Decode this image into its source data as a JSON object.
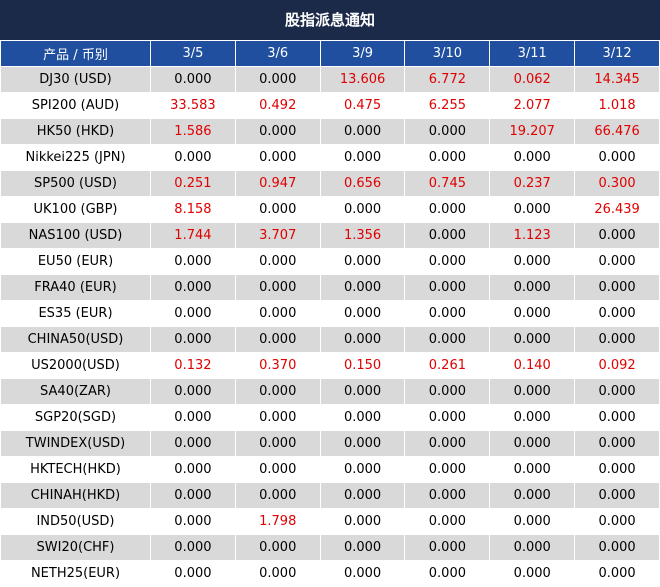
{
  "title": "股指派息通知",
  "table": {
    "header": [
      "产品 / 币别",
      "3/5",
      "3/6",
      "3/9",
      "3/10",
      "3/11",
      "3/12"
    ],
    "rows": [
      [
        "DJ30 (USD)",
        "0.000",
        "0.000",
        "13.606",
        "6.772",
        "0.062",
        "14.345"
      ],
      [
        "SPI200 (AUD)",
        "33.583",
        "0.492",
        "0.475",
        "6.255",
        "2.077",
        "1.018"
      ],
      [
        "HK50 (HKD)",
        "1.586",
        "0.000",
        "0.000",
        "0.000",
        "19.207",
        "66.476"
      ],
      [
        "Nikkei225 (JPN)",
        "0.000",
        "0.000",
        "0.000",
        "0.000",
        "0.000",
        "0.000"
      ],
      [
        "SP500 (USD)",
        "0.251",
        "0.947",
        "0.656",
        "0.745",
        "0.237",
        "0.300"
      ],
      [
        "UK100 (GBP)",
        "8.158",
        "0.000",
        "0.000",
        "0.000",
        "0.000",
        "26.439"
      ],
      [
        "NAS100 (USD)",
        "1.744",
        "3.707",
        "1.356",
        "0.000",
        "1.123",
        "0.000"
      ],
      [
        "EU50 (EUR)",
        "0.000",
        "0.000",
        "0.000",
        "0.000",
        "0.000",
        "0.000"
      ],
      [
        "FRA40 (EUR)",
        "0.000",
        "0.000",
        "0.000",
        "0.000",
        "0.000",
        "0.000"
      ],
      [
        "ES35 (EUR)",
        "0.000",
        "0.000",
        "0.000",
        "0.000",
        "0.000",
        "0.000"
      ],
      [
        "CHINA50(USD)",
        "0.000",
        "0.000",
        "0.000",
        "0.000",
        "0.000",
        "0.000"
      ],
      [
        "US2000(USD)",
        "0.132",
        "0.370",
        "0.150",
        "0.261",
        "0.140",
        "0.092"
      ],
      [
        "SA40(ZAR)",
        "0.000",
        "0.000",
        "0.000",
        "0.000",
        "0.000",
        "0.000"
      ],
      [
        "SGP20(SGD)",
        "0.000",
        "0.000",
        "0.000",
        "0.000",
        "0.000",
        "0.000"
      ],
      [
        "TWINDEX(USD)",
        "0.000",
        "0.000",
        "0.000",
        "0.000",
        "0.000",
        "0.000"
      ],
      [
        "HKTECH(HKD)",
        "0.000",
        "0.000",
        "0.000",
        "0.000",
        "0.000",
        "0.000"
      ],
      [
        "CHINAH(HKD)",
        "0.000",
        "0.000",
        "0.000",
        "0.000",
        "0.000",
        "0.000"
      ],
      [
        "IND50(USD)",
        "0.000",
        "1.798",
        "0.000",
        "0.000",
        "0.000",
        "0.000"
      ],
      [
        "SWI20(CHF)",
        "0.000",
        "0.000",
        "0.000",
        "0.000",
        "0.000",
        "0.000"
      ],
      [
        "NETH25(EUR)",
        "0.000",
        "0.000",
        "0.000",
        "0.000",
        "0.000",
        "0.000"
      ]
    ]
  }
}
